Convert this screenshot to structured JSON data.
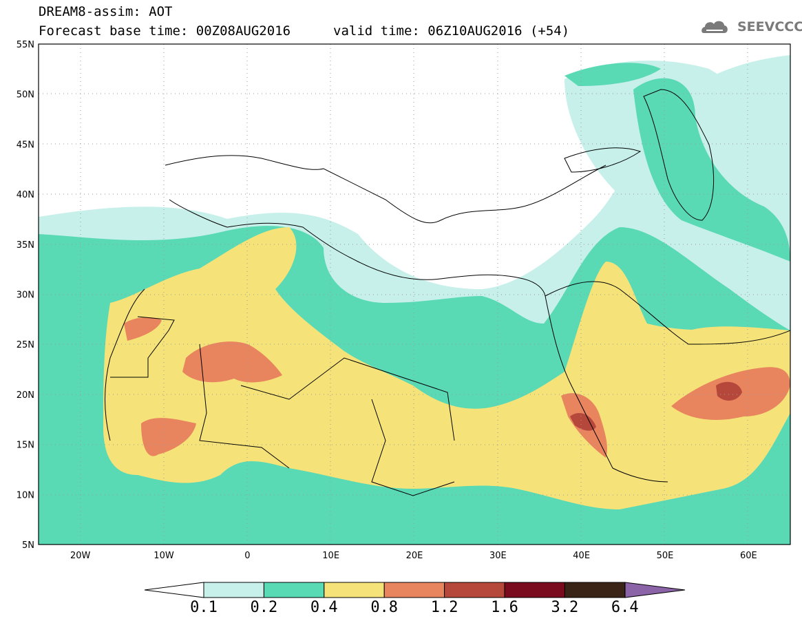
{
  "header": {
    "model_line": "DREAM8-assim: AOT",
    "base_time_line": "Forecast base time: 00Z08AUG2016",
    "valid_time_line": "valid time: 06Z10AUG2016 (+54)"
  },
  "logo": {
    "text": "SEEVCCC",
    "icon": "cloud-icon",
    "color": "#7a7a7a"
  },
  "map": {
    "extent": {
      "lon_min": -25,
      "lon_max": 65,
      "lat_min": 5,
      "lat_max": 55
    },
    "lat_ticks": [
      "55N",
      "50N",
      "45N",
      "40N",
      "35N",
      "30N",
      "25N",
      "20N",
      "15N",
      "10N",
      "5N"
    ],
    "lon_ticks": [
      "20W",
      "10W",
      "0",
      "10E",
      "20E",
      "30E",
      "40E",
      "50E",
      "60E"
    ]
  },
  "colorbar": {
    "labels": [
      "0.1",
      "0.2",
      "0.4",
      "0.8",
      "1.2",
      "1.6",
      "3.2",
      "6.4"
    ],
    "colors": [
      "#c7f0ea",
      "#5ad9b5",
      "#f5e37a",
      "#e8845e",
      "#b5483a",
      "#7a0a1e",
      "#3a2418",
      "#8a64a6"
    ]
  }
}
